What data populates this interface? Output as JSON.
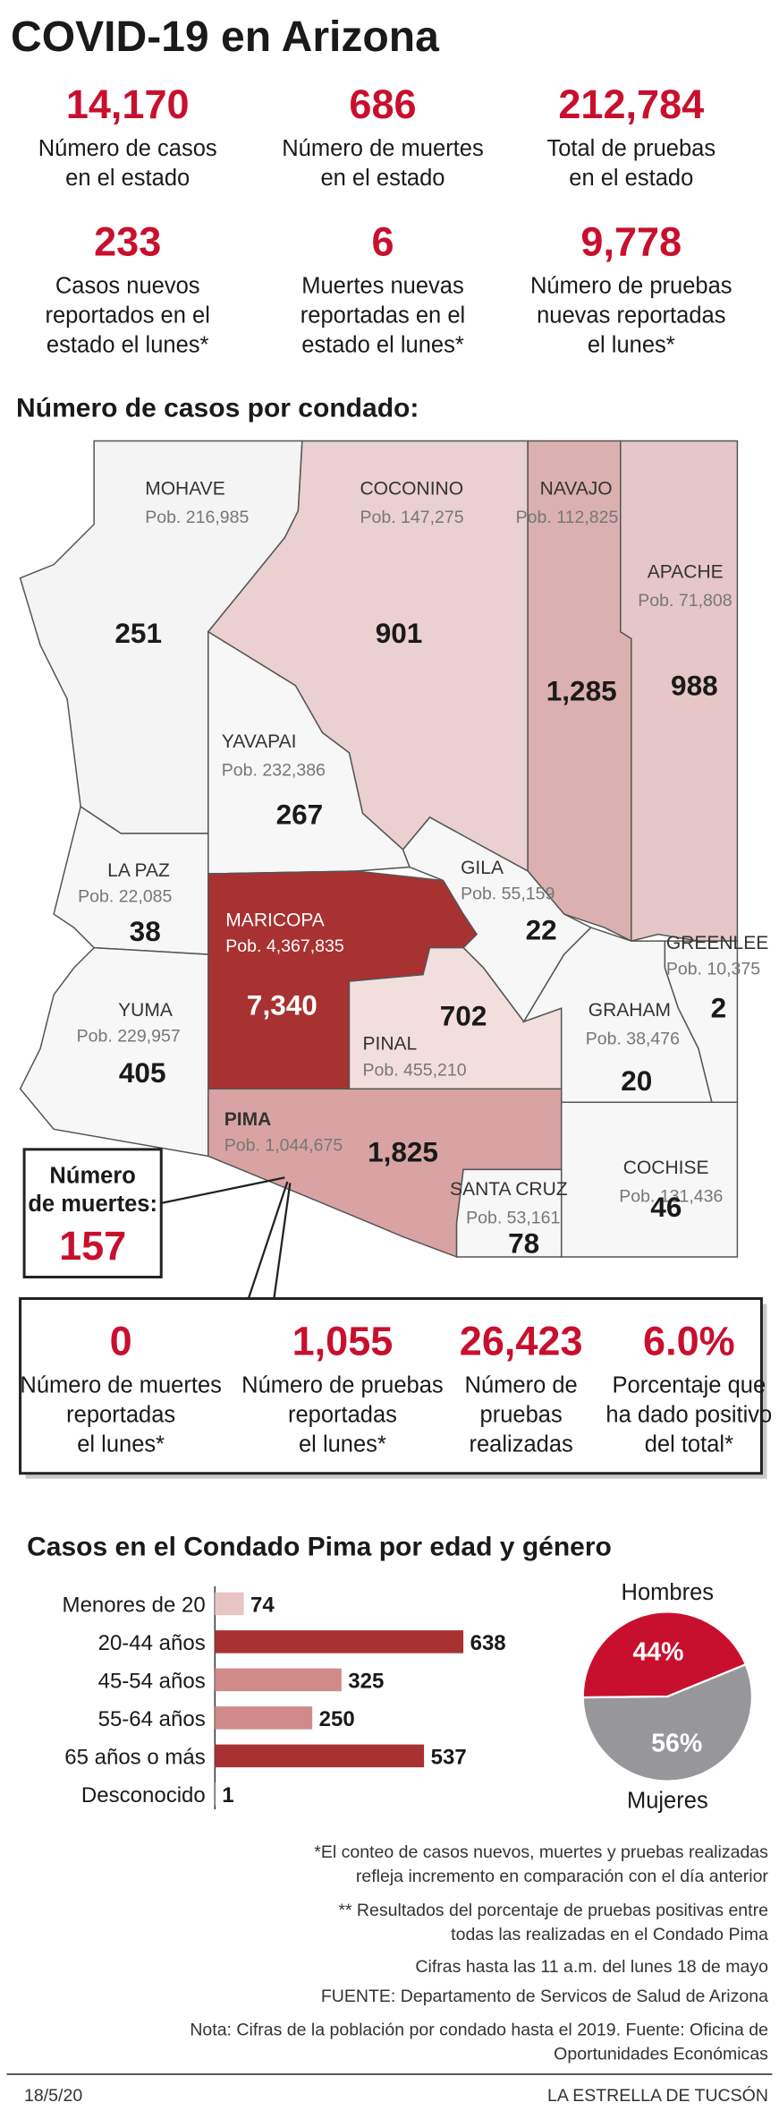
{
  "header": {
    "title": "COVID-19 en Arizona"
  },
  "state_stats": [
    {
      "value": "14,170",
      "label": [
        "Número de casos",
        "en el estado"
      ]
    },
    {
      "value": "686",
      "label": [
        "Número de muertes",
        "en el estado"
      ]
    },
    {
      "value": "212,784",
      "label": [
        "Total de pruebas",
        "en el estado"
      ]
    },
    {
      "value": "233",
      "label": [
        "Casos nuevos",
        "reportados en el",
        "estado el lunes*"
      ]
    },
    {
      "value": "6",
      "label": [
        "Muertes nuevas",
        "reportadas en el",
        "estado el lunes*"
      ]
    },
    {
      "value": "9,778",
      "label": [
        "Número de pruebas",
        "nuevas reportadas",
        "el lunes*"
      ]
    }
  ],
  "map": {
    "title": "Número de casos por condado:",
    "counties": [
      {
        "name": "MOHAVE",
        "population": "Pob. 216,985",
        "cases": "251"
      },
      {
        "name": "COCONINO",
        "population": "Pob. 147,275",
        "cases": "901"
      },
      {
        "name": "NAVAJO",
        "population": "Pob. 112,825",
        "cases": "1,285"
      },
      {
        "name": "APACHE",
        "population": "Pob. 71,808",
        "cases": "988"
      },
      {
        "name": "YAVAPAI",
        "population": "Pob. 232,386",
        "cases": "267"
      },
      {
        "name": "LA PAZ",
        "population": "Pob. 22,085",
        "cases": "38"
      },
      {
        "name": "MARICOPA",
        "population": "Pob. 4,367,835",
        "cases": "7,340"
      },
      {
        "name": "GILA",
        "population": "Pob. 55,159",
        "cases": "22"
      },
      {
        "name": "GREENLEE",
        "population": "Pob. 10,375",
        "cases": "2"
      },
      {
        "name": "YUMA",
        "population": "Pob. 229,957",
        "cases": "405"
      },
      {
        "name": "PINAL",
        "population": "Pob. 455,210",
        "cases": "702"
      },
      {
        "name": "GRAHAM",
        "population": "Pob. 38,476",
        "cases": "20"
      },
      {
        "name": "PIMA",
        "population": "Pob. 1,044,675",
        "cases": "1,825"
      },
      {
        "name": "COCHISE",
        "population": "Pob. 131,436",
        "cases": "46"
      },
      {
        "name": "SANTA CRUZ",
        "population": "Pob. 53,161",
        "cases": "78"
      }
    ],
    "deaths_callout": {
      "label": [
        "Número",
        "de muertes:"
      ],
      "value": "157"
    }
  },
  "pima_stats": [
    {
      "value": "0",
      "label": [
        "Número de muertes",
        "reportadas",
        "el lunes*"
      ]
    },
    {
      "value": "1,055",
      "label": [
        "Número de pruebas",
        "reportadas",
        "el lunes*"
      ]
    },
    {
      "value": "26,423",
      "label": [
        "Número de",
        "pruebas",
        "realizadas"
      ]
    },
    {
      "value": "6.0%",
      "label": [
        "Porcentaje que",
        "ha dado positivo",
        "del total*"
      ]
    }
  ],
  "chart_data": [
    {
      "type": "bar",
      "title": "Casos en el Condado Pima por edad y género",
      "categories": [
        "Menores de 20",
        "20-44 años",
        "45-54 años",
        "55-64 años",
        "65 años o más",
        "Desconocido"
      ],
      "values": [
        74,
        638,
        325,
        250,
        537,
        1
      ],
      "colors": [
        "#e8c4c4",
        "#a83232",
        "#d08a8a",
        "#d08a8a",
        "#a83232",
        "#e8c4c4"
      ]
    },
    {
      "type": "pie",
      "categories": [
        "Hombres",
        "Mujeres"
      ],
      "values": [
        44,
        56
      ],
      "value_labels": [
        "44%",
        "56%"
      ],
      "colors": [
        "#c8102e",
        "#97979b"
      ]
    }
  ],
  "notes": [
    [
      "*El conteo de casos nuevos, muertes y pruebas realizadas",
      "refleja incremento en comparación con el día anterior"
    ],
    [
      "** Resultados del porcentaje de pruebas positivas entre",
      "todas las realizadas en el Condado Pima"
    ],
    [
      "Cifras hasta las 11 a.m. del lunes 18 de mayo"
    ],
    [
      "FUENTE: Departamento de Servicos de Salud de Arizona"
    ],
    [
      "Nota: Cifras de la población por condado hasta el 2019. Fuente: Oficina de",
      "Oportunidades Económicas"
    ]
  ],
  "footer": {
    "date": "18/5/20",
    "publisher": "LA ESTRELLA DE TUCSÓN"
  }
}
